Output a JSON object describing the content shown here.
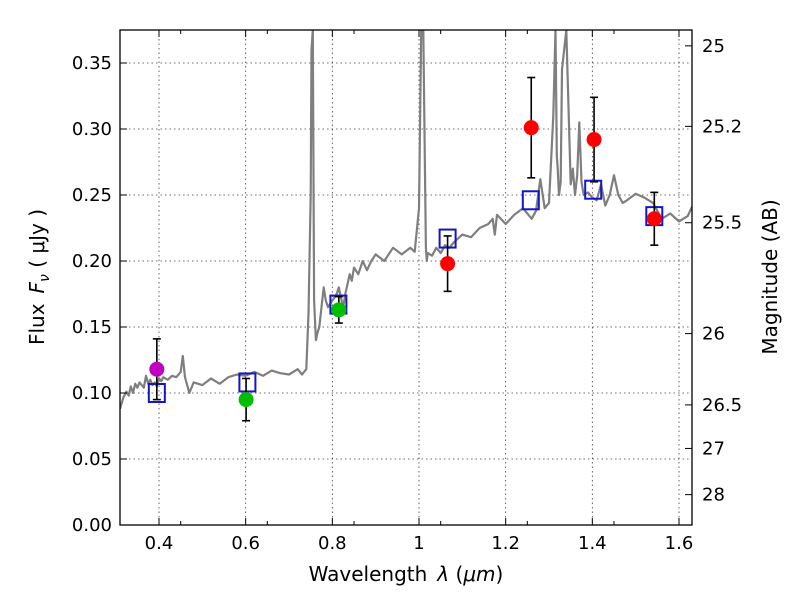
{
  "chart_data": {
    "type": "scatter",
    "xlabel": "Wavelength",
    "xlabel_symbol": "λ",
    "xlabel_unit": "μm",
    "ylabel": "Flux",
    "ylabel_symbol": "F",
    "ylabel_subscript": "ν",
    "ylabel_unit": "μJy",
    "ylabel_right": "Magnitude (AB)",
    "xlim": [
      0.31,
      1.63
    ],
    "ylim": [
      0.0,
      0.375
    ],
    "grid": true,
    "x_ticks": [
      0.4,
      0.6,
      0.8,
      1.0,
      1.2,
      1.4,
      1.6
    ],
    "x_tick_labels": [
      "0.4",
      "0.6",
      "0.8",
      "1",
      "1.2",
      "1.4",
      "1.6"
    ],
    "y_ticks": [
      0.0,
      0.05,
      0.1,
      0.15,
      0.2,
      0.25,
      0.3,
      0.35
    ],
    "y_tick_labels": [
      "0.00",
      "0.05",
      "0.10",
      "0.15",
      "0.20",
      "0.25",
      "0.30",
      "0.35"
    ],
    "right_ticks": [
      {
        "label": "25",
        "flux": 0.363
      },
      {
        "label": "25.2",
        "flux": 0.302
      },
      {
        "label": "25.5",
        "flux": 0.229
      },
      {
        "label": "26",
        "flux": 0.145
      },
      {
        "label": "26.5",
        "flux": 0.091
      },
      {
        "label": "27",
        "flux": 0.058
      },
      {
        "label": "28",
        "flux": 0.023
      }
    ],
    "observed": [
      {
        "x": 0.395,
        "y": 0.118,
        "err": 0.023,
        "color": "#bf00bf"
      },
      {
        "x": 0.601,
        "y": 0.095,
        "err": 0.016,
        "color": "#00bf00"
      },
      {
        "x": 0.815,
        "y": 0.163,
        "err": 0.01,
        "color": "#00bf00"
      },
      {
        "x": 1.066,
        "y": 0.198,
        "err": 0.021,
        "color": "#ff0000"
      },
      {
        "x": 1.259,
        "y": 0.301,
        "err": 0.038,
        "color": "#ff0000"
      },
      {
        "x": 1.404,
        "y": 0.292,
        "err": 0.032,
        "color": "#ff0000"
      },
      {
        "x": 1.543,
        "y": 0.232,
        "err": 0.02,
        "color": "#ff0000"
      }
    ],
    "model_photometry": [
      {
        "x": 0.395,
        "y": 0.1
      },
      {
        "x": 0.604,
        "y": 0.108
      },
      {
        "x": 0.814,
        "y": 0.167
      },
      {
        "x": 1.066,
        "y": 0.217
      },
      {
        "x": 1.258,
        "y": 0.246
      },
      {
        "x": 1.402,
        "y": 0.254
      },
      {
        "x": 1.543,
        "y": 0.234
      }
    ],
    "model_spectrum": {
      "x": [
        0.31,
        0.318,
        0.325,
        0.33,
        0.335,
        0.34,
        0.345,
        0.35,
        0.355,
        0.36,
        0.365,
        0.37,
        0.375,
        0.38,
        0.385,
        0.39,
        0.395,
        0.4,
        0.405,
        0.41,
        0.42,
        0.43,
        0.44,
        0.45,
        0.455,
        0.46,
        0.47,
        0.48,
        0.5,
        0.52,
        0.54,
        0.56,
        0.58,
        0.6,
        0.62,
        0.64,
        0.66,
        0.68,
        0.7,
        0.72,
        0.73,
        0.74,
        0.745,
        0.75,
        0.752,
        0.755,
        0.758,
        0.762,
        0.766,
        0.77,
        0.78,
        0.785,
        0.79,
        0.8,
        0.81,
        0.815,
        0.82,
        0.825,
        0.83,
        0.84,
        0.845,
        0.85,
        0.86,
        0.87,
        0.88,
        0.89,
        0.9,
        0.92,
        0.94,
        0.96,
        0.98,
        0.99,
        1.0,
        1.005,
        1.01,
        1.014,
        1.016,
        1.018,
        1.02,
        1.03,
        1.04,
        1.05,
        1.06,
        1.07,
        1.08,
        1.1,
        1.12,
        1.14,
        1.16,
        1.17,
        1.175,
        1.18,
        1.2,
        1.22,
        1.24,
        1.26,
        1.27,
        1.28,
        1.29,
        1.3,
        1.31,
        1.315,
        1.318,
        1.32,
        1.323,
        1.327,
        1.33,
        1.34,
        1.35,
        1.355,
        1.36,
        1.365,
        1.37,
        1.375,
        1.38,
        1.39,
        1.4,
        1.41,
        1.42,
        1.43,
        1.44,
        1.45,
        1.46,
        1.47,
        1.48,
        1.5,
        1.52,
        1.54,
        1.55,
        1.56,
        1.58,
        1.6,
        1.62,
        1.63
      ],
      "y": [
        0.088,
        0.097,
        0.101,
        0.098,
        0.105,
        0.1,
        0.107,
        0.104,
        0.108,
        0.106,
        0.104,
        0.113,
        0.107,
        0.11,
        0.106,
        0.108,
        0.105,
        0.111,
        0.109,
        0.112,
        0.11,
        0.113,
        0.112,
        0.116,
        0.128,
        0.112,
        0.1,
        0.108,
        0.106,
        0.111,
        0.107,
        0.112,
        0.114,
        0.113,
        0.116,
        0.113,
        0.117,
        0.115,
        0.114,
        0.118,
        0.114,
        0.118,
        0.16,
        0.25,
        0.36,
        0.375,
        0.17,
        0.14,
        0.146,
        0.15,
        0.18,
        0.17,
        0.165,
        0.17,
        0.175,
        0.18,
        0.172,
        0.165,
        0.175,
        0.19,
        0.185,
        0.195,
        0.19,
        0.2,
        0.193,
        0.2,
        0.205,
        0.2,
        0.21,
        0.205,
        0.21,
        0.207,
        0.24,
        0.375,
        0.375,
        0.26,
        0.21,
        0.2,
        0.206,
        0.204,
        0.21,
        0.206,
        0.212,
        0.21,
        0.214,
        0.22,
        0.218,
        0.225,
        0.228,
        0.232,
        0.22,
        0.235,
        0.228,
        0.235,
        0.24,
        0.232,
        0.238,
        0.262,
        0.24,
        0.244,
        0.31,
        0.375,
        0.28,
        0.27,
        0.25,
        0.26,
        0.345,
        0.375,
        0.258,
        0.27,
        0.25,
        0.265,
        0.305,
        0.26,
        0.25,
        0.252,
        0.248,
        0.246,
        0.258,
        0.242,
        0.25,
        0.265,
        0.25,
        0.244,
        0.246,
        0.251,
        0.248,
        0.244,
        0.238,
        0.232,
        0.236,
        0.23,
        0.234,
        0.241
      ]
    }
  }
}
